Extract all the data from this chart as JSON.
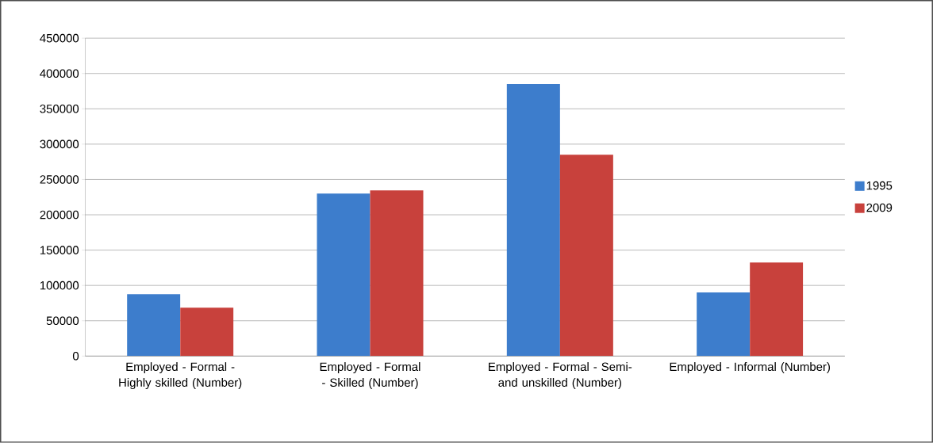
{
  "chart_data": {
    "type": "bar",
    "categories": [
      "Employed - Formal - Highly skilled (Number)",
      "Employed - Formal - Skilled (Number)",
      "Employed - Formal - Semi- and unskilled (Number)",
      "Employed - Informal (Number)"
    ],
    "series": [
      {
        "name": "1995",
        "color": "#3d7dcc",
        "values": [
          87500,
          230000,
          385000,
          90000
        ]
      },
      {
        "name": "2009",
        "color": "#c8413c",
        "values": [
          68500,
          234500,
          285000,
          132500
        ]
      }
    ],
    "ylim": [
      0,
      450000
    ],
    "yticks": [
      0,
      50000,
      100000,
      150000,
      200000,
      250000,
      300000,
      350000,
      400000,
      450000
    ],
    "grid": "y",
    "legend": "right"
  }
}
